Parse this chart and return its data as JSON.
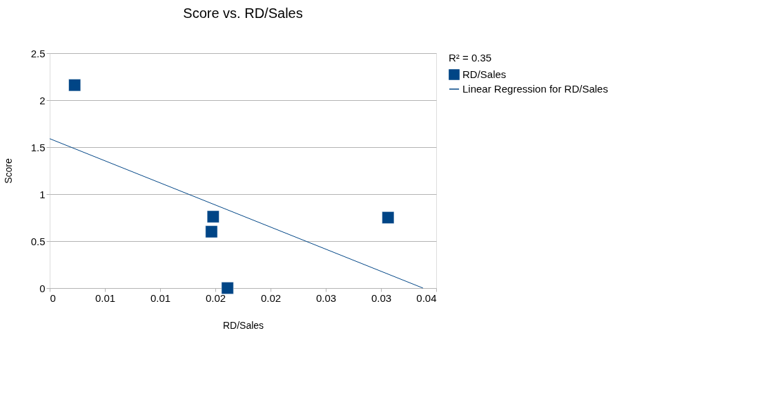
{
  "chart_data": {
    "type": "scatter",
    "title": "Score vs. RD/Sales",
    "xlabel": "RD/Sales",
    "ylabel": "Score",
    "legend_title": "R² = 0.35",
    "xlim": [
      0,
      0.035
    ],
    "ylim": [
      0,
      2.5
    ],
    "xticks": [
      0,
      {
        "value": 0.005,
        "label": "0.01"
      },
      0.01,
      {
        "value": 0.015,
        "label": "0.02"
      },
      0.02,
      {
        "value": 0.025,
        "label": "0.03"
      },
      0.03,
      {
        "value": 0.035,
        "label": "0.04"
      }
    ],
    "yticks": [
      0,
      0.5,
      1,
      1.5,
      2,
      2.5
    ],
    "grid": "y",
    "legend": "right",
    "series": [
      {
        "name": "RD/Sales",
        "color": "#004586",
        "marker": "square",
        "x": [
          0.00226,
          0.0148,
          0.01465,
          0.0161,
          0.03064
        ],
        "values": [
          2.16,
          0.76,
          0.6,
          0,
          0.75
        ]
      },
      {
        "name": "Linear Regression for RD/Sales",
        "type": "line",
        "marker": "none",
        "color": "#004586",
        "x": [
          0,
          0.0338
        ],
        "values": [
          1.59,
          0
        ]
      }
    ]
  }
}
